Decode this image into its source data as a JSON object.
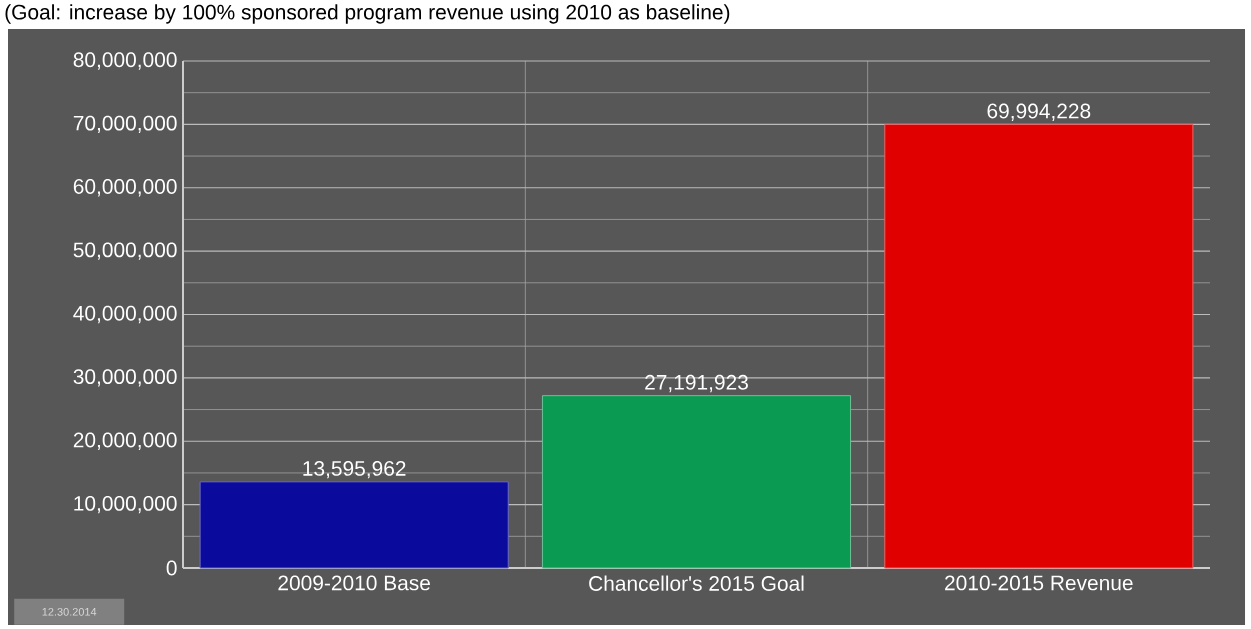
{
  "chart_data": {
    "type": "bar",
    "title": "(Goal: increase by 100% sponsored program revenue using 2010 as baseline)",
    "categories": [
      "2009-2010 Base",
      "Chancellor's 2015 Goal",
      "2010-2015 Revenue"
    ],
    "values": [
      13595962,
      27191923,
      69994228
    ],
    "colors": [
      "#0a0a9c",
      "#0a9a52",
      "#e00000"
    ],
    "value_labels": [
      "13,595,962",
      "27,191,923",
      "69,994,228"
    ],
    "ylim": [
      0,
      80000000
    ],
    "yticks": [
      {
        "value": 0,
        "label": "0"
      },
      {
        "value": 10000000,
        "label": "10,000,000"
      },
      {
        "value": 20000000,
        "label": "20,000,000"
      },
      {
        "value": 30000000,
        "label": "30,000,000"
      },
      {
        "value": 40000000,
        "label": "40,000,000"
      },
      {
        "value": 50000000,
        "label": "50,000,000"
      },
      {
        "value": 60000000,
        "label": "60,000,000"
      },
      {
        "value": 70000000,
        "label": "70,000,000"
      },
      {
        "value": 80000000,
        "label": "80,000,000"
      }
    ],
    "grid": true,
    "annotations": [
      "12.30.2014"
    ]
  }
}
